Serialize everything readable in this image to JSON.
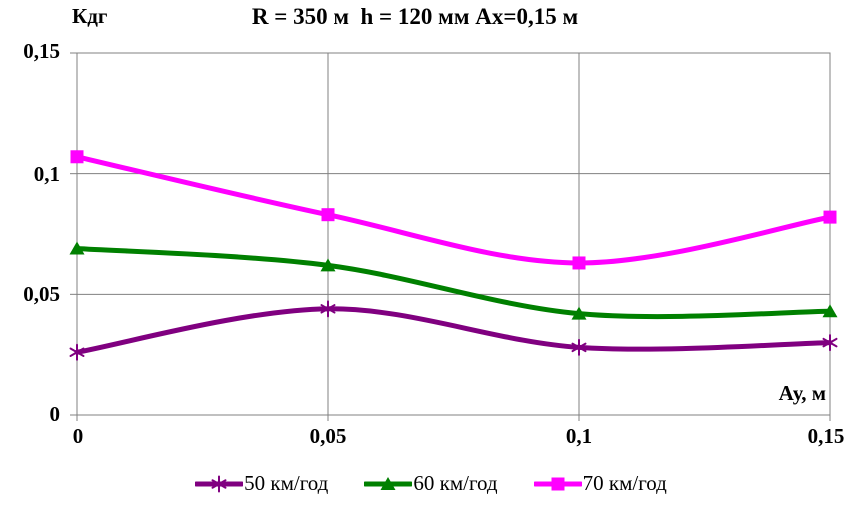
{
  "title": "R = 350 м  h = 120 мм Ах=0,15 м",
  "y_axis_title": "Кдг",
  "x_axis_title": "Ау, м",
  "chart_data": {
    "type": "line",
    "smooth": true,
    "x": [
      0,
      0.05,
      0.1,
      0.15
    ],
    "x_tick_labels": [
      "0",
      "0,05",
      "0,1",
      "0,15"
    ],
    "x_tick_values": [
      0,
      0.05,
      0.1,
      0.15
    ],
    "y_tick_labels": [
      "0",
      "0,05",
      "0,1",
      "0,15"
    ],
    "y_tick_values": [
      0,
      0.05,
      0.1,
      0.15
    ],
    "xlim": [
      0,
      0.15
    ],
    "ylim": [
      0,
      0.15
    ],
    "grid": true,
    "grid_color": "#808080",
    "legend_position": "bottom",
    "title": "R = 350 м  h = 120 мм Ах=0,15 м",
    "xlabel": "Ау, м",
    "ylabel": "Кдг",
    "series": [
      {
        "name": "50 км/год",
        "color": "#800080",
        "marker": "asterisk",
        "values": [
          0.026,
          0.044,
          0.028,
          0.03
        ]
      },
      {
        "name": "60 км/год",
        "color": "#008000",
        "marker": "triangle",
        "values": [
          0.069,
          0.062,
          0.042,
          0.043
        ]
      },
      {
        "name": "70 км/год",
        "color": "#FF00FF",
        "marker": "square",
        "values": [
          0.107,
          0.083,
          0.063,
          0.082
        ]
      }
    ]
  }
}
